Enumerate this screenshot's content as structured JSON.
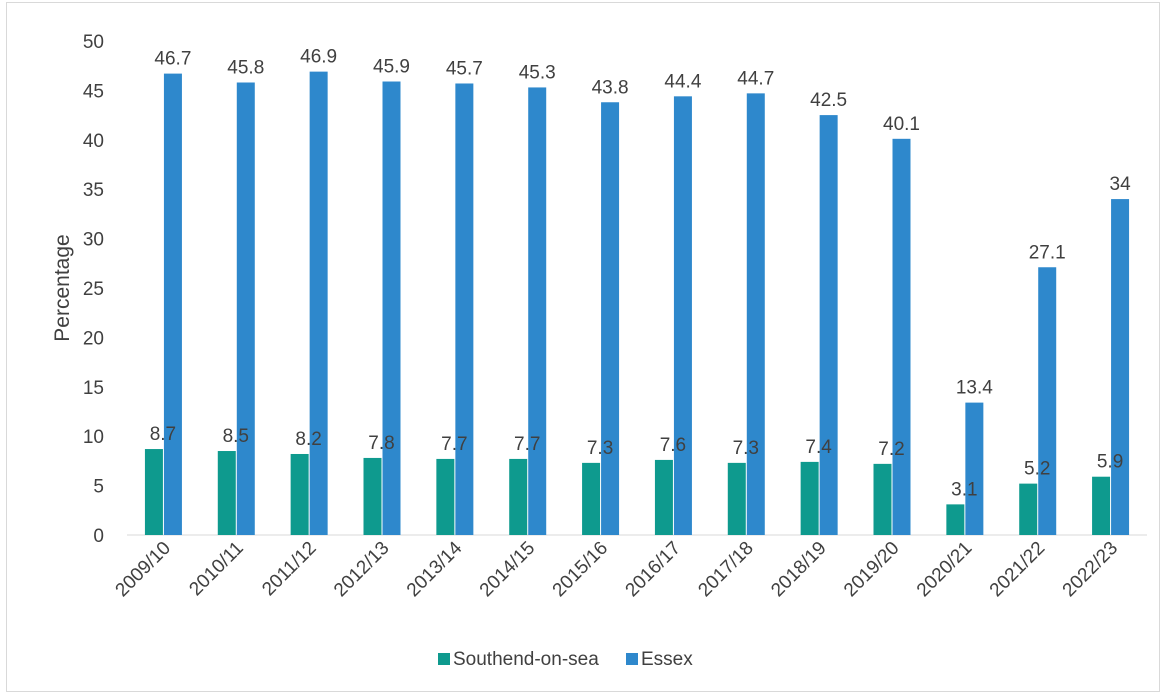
{
  "chart_data": {
    "type": "bar",
    "title": "",
    "xlabel": "",
    "ylabel": "Percentage",
    "ylim": [
      0,
      50
    ],
    "yticks": [
      0,
      5,
      10,
      15,
      20,
      25,
      30,
      35,
      40,
      45,
      50
    ],
    "grid": false,
    "legend_position": "bottom",
    "categories": [
      "2009/10",
      "2010/11",
      "2011/12",
      "2012/13",
      "2013/14",
      "2014/15",
      "2015/16",
      "2016/17",
      "2017/18",
      "2018/19",
      "2019/20",
      "2020/21",
      "2021/22",
      "2022/23"
    ],
    "series": [
      {
        "name": "Southend-on-sea",
        "color": "#0e9a8e",
        "values": [
          8.7,
          8.5,
          8.2,
          7.8,
          7.7,
          7.7,
          7.3,
          7.6,
          7.3,
          7.4,
          7.2,
          3.1,
          5.2,
          5.9
        ],
        "labels": [
          "8.7",
          "8.5",
          "8.2",
          "7.8",
          "7.7",
          "7.7",
          "7.3",
          "7.6",
          "7.3",
          "7.4",
          "7.2",
          "3.1",
          "5.2",
          "5.9"
        ]
      },
      {
        "name": "Essex",
        "color": "#2e88cc",
        "values": [
          46.7,
          45.8,
          46.9,
          45.9,
          45.7,
          45.3,
          43.8,
          44.4,
          44.7,
          42.5,
          40.1,
          13.4,
          27.1,
          34
        ],
        "labels": [
          "46.7",
          "45.8",
          "46.9",
          "45.9",
          "45.7",
          "45.3",
          "43.8",
          "44.4",
          "44.7",
          "42.5",
          "40.1",
          "13.4",
          "27.1",
          "34"
        ]
      }
    ]
  }
}
